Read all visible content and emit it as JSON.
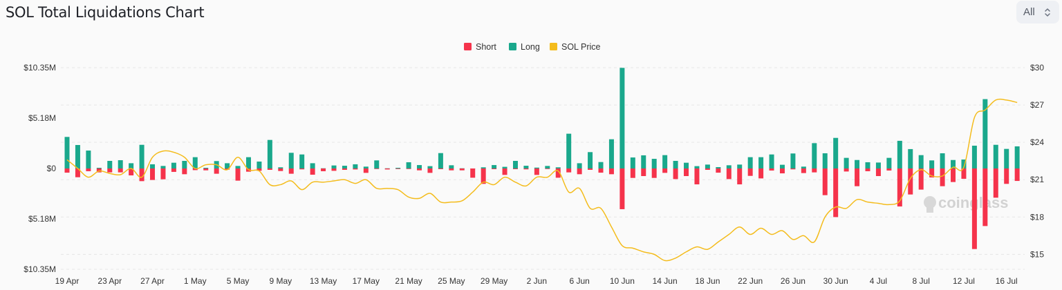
{
  "header": {
    "title": "SOL Total Liquidations Chart",
    "range_select": "All"
  },
  "colors": {
    "short": "#f5334b",
    "long": "#1aa88c",
    "price": "#f4bc1c"
  },
  "watermark": "coinglass",
  "chart_data": {
    "type": "bar",
    "title": "SOL Total Liquidations Chart",
    "legend": {
      "placement": "top-center",
      "entries": [
        "Short",
        "Long",
        "SOL Price"
      ]
    },
    "grid": true,
    "categories": [
      "19 Apr",
      "20 Apr",
      "21 Apr",
      "22 Apr",
      "23 Apr",
      "24 Apr",
      "25 Apr",
      "26 Apr",
      "27 Apr",
      "28 Apr",
      "29 Apr",
      "30 Apr",
      "1 May",
      "2 May",
      "3 May",
      "4 May",
      "5 May",
      "6 May",
      "7 May",
      "8 May",
      "9 May",
      "10 May",
      "11 May",
      "12 May",
      "13 May",
      "14 May",
      "15 May",
      "16 May",
      "17 May",
      "18 May",
      "19 May",
      "20 May",
      "21 May",
      "22 May",
      "23 May",
      "24 May",
      "25 May",
      "26 May",
      "27 May",
      "28 May",
      "29 May",
      "30 May",
      "31 May",
      "1 Jun",
      "2 Jun",
      "3 Jun",
      "4 Jun",
      "5 Jun",
      "6 Jun",
      "7 Jun",
      "8 Jun",
      "9 Jun",
      "10 Jun",
      "11 Jun",
      "12 Jun",
      "13 Jun",
      "14 Jun",
      "15 Jun",
      "16 Jun",
      "17 Jun",
      "18 Jun",
      "19 Jun",
      "20 Jun",
      "21 Jun",
      "22 Jun",
      "23 Jun",
      "24 Jun",
      "25 Jun",
      "26 Jun",
      "27 Jun",
      "28 Jun",
      "29 Jun",
      "30 Jun",
      "1 Jul",
      "2 Jul",
      "3 Jul",
      "4 Jul",
      "5 Jul",
      "6 Jul",
      "7 Jul",
      "8 Jul",
      "9 Jul",
      "10 Jul",
      "11 Jul",
      "12 Jul",
      "13 Jul",
      "14 Jul",
      "15 Jul",
      "16 Jul",
      "17 Jul"
    ],
    "x_tick_labels": [
      "19 Apr",
      "23 Apr",
      "27 Apr",
      "1 May",
      "5 May",
      "9 May",
      "13 May",
      "17 May",
      "21 May",
      "25 May",
      "29 May",
      "2 Jun",
      "6 Jun",
      "10 Jun",
      "14 Jun",
      "18 Jun",
      "22 Jun",
      "26 Jun",
      "30 Jun",
      "4 Jul",
      "8 Jul",
      "12 Jul",
      "16 Jul"
    ],
    "y_left": {
      "unit": "USD millions",
      "range": [
        -10.35,
        10.35
      ],
      "tick_values": [
        10.35,
        5.18,
        0,
        -5.18,
        -10.35
      ],
      "tick_labels": [
        "$10.35M",
        "$5.18M",
        "$0",
        "$5.18M",
        "$10.35M"
      ]
    },
    "y_right": {
      "unit": "USD",
      "range": [
        13.8,
        30
      ],
      "tick_values": [
        30,
        27,
        24,
        21,
        18,
        15
      ],
      "tick_labels": [
        "$30",
        "$27",
        "$24",
        "$21",
        "$18",
        "$15"
      ]
    },
    "series": [
      {
        "name": "Short",
        "type": "bar",
        "direction": "down",
        "values": [
          0.43,
          0.9,
          0.28,
          0.4,
          0.4,
          0.4,
          0.71,
          1.3,
          1.18,
          1.11,
          0.35,
          0.59,
          0.17,
          0.19,
          0.54,
          0.12,
          1.25,
          0.33,
          0.24,
          0.14,
          0.26,
          0.54,
          0.09,
          0.64,
          0.28,
          0.24,
          0.14,
          0.1,
          0.45,
          0.02,
          0.1,
          0.02,
          0.02,
          0.19,
          0.45,
          0.07,
          0.19,
          0.19,
          0.95,
          1.58,
          0.07,
          0.66,
          0.07,
          0.09,
          0.66,
          0.02,
          0.95,
          0.4,
          0.59,
          0.14,
          0.43,
          0.59,
          4.18,
          0.97,
          0.78,
          0.97,
          0.45,
          1.09,
          0.78,
          1.63,
          0.14,
          0.43,
          1.09,
          1.63,
          0.76,
          1.02,
          0.21,
          0.5,
          0.09,
          0.47,
          0.4,
          2.74,
          4.99,
          0.31,
          1.82,
          0.28,
          0.78,
          0.21,
          3.9,
          2.67,
          2.17,
          0.92,
          1.82,
          1.39,
          1.06,
          8.27,
          5.91,
          3.0,
          1.58,
          1.28
        ]
      },
      {
        "name": "Long",
        "type": "bar",
        "direction": "up",
        "values": [
          3.24,
          2.41,
          1.84,
          0.07,
          0.78,
          0.85,
          0.54,
          2.43,
          0.43,
          0.26,
          0.59,
          0.78,
          1.16,
          0.07,
          0.76,
          0.54,
          0.26,
          1.16,
          0.71,
          2.93,
          0.12,
          1.61,
          1.44,
          0.54,
          0.02,
          0.31,
          0.28,
          0.43,
          0.19,
          0.83,
          0.02,
          0.07,
          0.64,
          0.35,
          0.24,
          1.58,
          0.33,
          0.02,
          0.0,
          0.12,
          0.35,
          0.17,
          0.78,
          0.28,
          0.09,
          0.26,
          0.12,
          3.57,
          0.54,
          1.68,
          0.66,
          3.0,
          10.33,
          1.13,
          1.35,
          0.99,
          1.37,
          0.78,
          0.59,
          0.24,
          0.4,
          0.14,
          0.33,
          0.4,
          1.16,
          1.16,
          1.44,
          0.38,
          1.54,
          0.19,
          2.6,
          1.56,
          3.14,
          1.09,
          0.87,
          0.64,
          0.61,
          1.09,
          2.84,
          1.99,
          1.37,
          0.83,
          1.56,
          0.87,
          0.92,
          2.34,
          7.12,
          2.43,
          2.01,
          2.27
        ]
      },
      {
        "name": "SOL Price",
        "type": "line",
        "axis": "right",
        "values": [
          22.6,
          21.9,
          21.2,
          21.7,
          21.5,
          21.4,
          21.9,
          21.2,
          22.8,
          23.3,
          23.2,
          22.8,
          21.9,
          22.2,
          22.2,
          21.8,
          22.8,
          21.8,
          21.7,
          20.6,
          20.6,
          20.9,
          20.2,
          20.8,
          20.8,
          20.9,
          21.0,
          20.7,
          21.0,
          20.3,
          20.3,
          20.2,
          19.6,
          19.5,
          19.9,
          19.2,
          19.2,
          19.3,
          20.0,
          20.8,
          20.6,
          21.2,
          20.8,
          20.5,
          21.2,
          21.2,
          21.7,
          20.0,
          20.3,
          18.7,
          18.7,
          17.2,
          15.7,
          15.5,
          15.2,
          15.0,
          14.5,
          14.7,
          15.2,
          15.6,
          15.4,
          16.0,
          16.6,
          17.2,
          16.6,
          17.1,
          16.6,
          16.9,
          16.2,
          16.5,
          16.0,
          18.0,
          18.8,
          18.7,
          19.4,
          19.2,
          19.1,
          19.0,
          19.3,
          21.1,
          21.8,
          21.3,
          21.3,
          22.0,
          22.0,
          26.0,
          26.6,
          27.4,
          27.4,
          27.2
        ]
      }
    ]
  }
}
